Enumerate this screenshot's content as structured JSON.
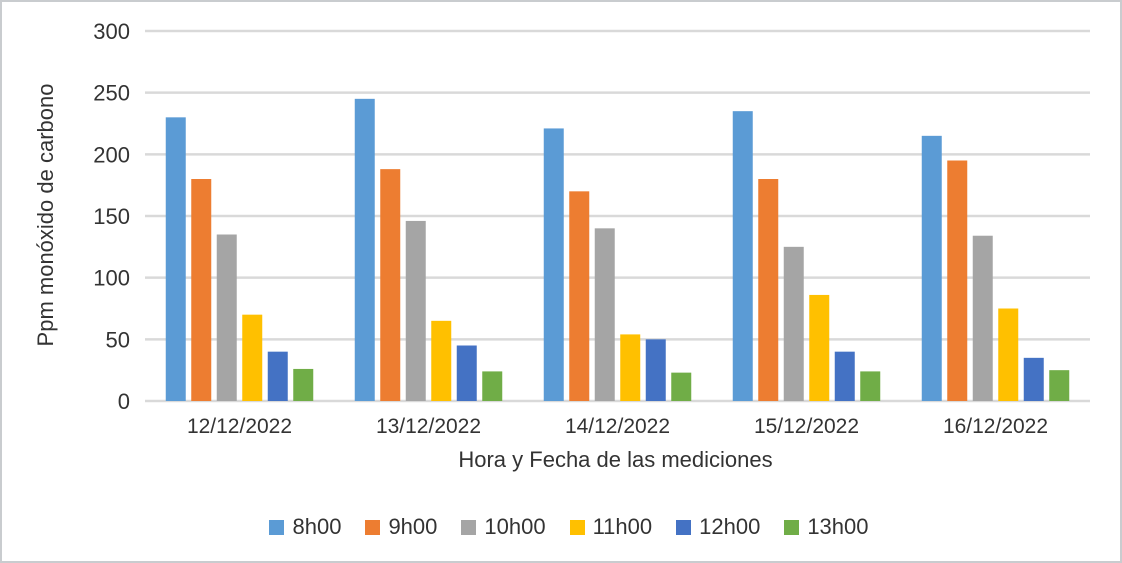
{
  "frame": {
    "background": "#ffffff",
    "border_color": "#c9cccf"
  },
  "chart_data": {
    "type": "bar",
    "title": "",
    "xlabel": "Hora y Fecha de las mediciones",
    "ylabel": "Ppm monóxido de carbono",
    "categories": [
      "12/12/2022",
      "13/12/2022",
      "14/12/2022",
      "15/12/2022",
      "16/12/2022"
    ],
    "series": [
      {
        "name": "8h00",
        "color": "#5B9BD5",
        "values": [
          230,
          245,
          221,
          235,
          215
        ]
      },
      {
        "name": "9h00",
        "color": "#ED7D31",
        "values": [
          180,
          188,
          170,
          180,
          195
        ]
      },
      {
        "name": "10h00",
        "color": "#A5A5A5",
        "values": [
          135,
          146,
          140,
          125,
          134
        ]
      },
      {
        "name": "11h00",
        "color": "#FFC000",
        "values": [
          70,
          65,
          54,
          86,
          75
        ]
      },
      {
        "name": "12h00",
        "color": "#4472C4",
        "values": [
          40,
          45,
          50,
          40,
          35
        ]
      },
      {
        "name": "13h00",
        "color": "#70AD47",
        "values": [
          26,
          24,
          23,
          24,
          25
        ]
      }
    ],
    "ylim": [
      0,
      300
    ],
    "yticks": [
      0,
      50,
      100,
      150,
      200,
      250,
      300
    ],
    "grid": true,
    "gridline_color": "#d9d9d9",
    "text_color": "#333333",
    "legend_position": "bottom"
  }
}
